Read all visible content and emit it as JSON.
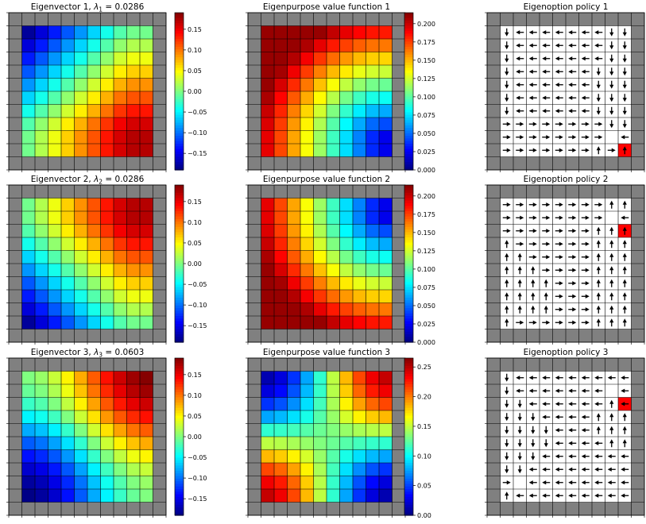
{
  "chart_data": [
    {
      "type": "heatmap",
      "kind": "eigenvector",
      "title_text": "Eigenvector 1,  ",
      "lambda_sym": "λ",
      "lambda_sub": "1",
      "lambda_value": " = 0.0286",
      "grid_size": 12,
      "pattern": "ev1",
      "vmin": -0.19,
      "vmax": 0.19,
      "colorbar_ticks": [
        "0.15",
        "0.10",
        "0.05",
        "0.00",
        "−0.05",
        "−0.10",
        "−0.15"
      ],
      "colorbar_values": [
        0.15,
        0.1,
        0.05,
        0.0,
        -0.05,
        -0.1,
        -0.15
      ]
    },
    {
      "type": "heatmap",
      "kind": "value",
      "title_text": "Eigenpurpose value function 1",
      "grid_size": 12,
      "pattern": "vf1",
      "vmin": 0.0,
      "vmax": 0.215,
      "colorbar_ticks": [
        "0.200",
        "0.175",
        "0.150",
        "0.125",
        "0.100",
        "0.075",
        "0.050",
        "0.025",
        "0.000"
      ],
      "colorbar_values": [
        0.2,
        0.175,
        0.15,
        0.125,
        0.1,
        0.075,
        0.05,
        0.025,
        0.0
      ]
    },
    {
      "type": "policy",
      "title_text": "Eigenoption policy 1",
      "grid_size": 12,
      "goal": [
        9,
        9
      ],
      "arrow_color": "#000000",
      "goal_color": "#ff0000",
      "arrows": [
        "DLLLLLLLDD",
        "DLLLLLLLDD",
        "DLLLLLLLDD",
        "DLLLLLLDDD",
        "DLLLLLLDDD",
        "DLLLLLLDDD",
        "DLLLLLLDDD",
        "RRRRRRRRDD",
        "RRRRRRRRGL",
        "RRRRRRRURU"
      ]
    },
    {
      "type": "heatmap",
      "kind": "eigenvector",
      "title_text": "Eigenvector 2,  ",
      "lambda_sym": "λ",
      "lambda_sub": "2",
      "lambda_value": " = 0.0286",
      "grid_size": 12,
      "pattern": "ev2",
      "vmin": -0.19,
      "vmax": 0.19,
      "colorbar_ticks": [
        "0.15",
        "0.10",
        "0.05",
        "0.00",
        "−0.05",
        "−0.10",
        "−0.15"
      ],
      "colorbar_values": [
        0.15,
        0.1,
        0.05,
        0.0,
        -0.05,
        -0.1,
        -0.15
      ]
    },
    {
      "type": "heatmap",
      "kind": "value",
      "title_text": "Eigenpurpose value function 2",
      "grid_size": 12,
      "pattern": "vf2",
      "vmin": 0.0,
      "vmax": 0.215,
      "colorbar_ticks": [
        "0.200",
        "0.175",
        "0.150",
        "0.125",
        "0.100",
        "0.075",
        "0.050",
        "0.025",
        "0.000"
      ],
      "colorbar_values": [
        0.2,
        0.175,
        0.15,
        0.125,
        0.1,
        0.075,
        0.05,
        0.025,
        0.0
      ]
    },
    {
      "type": "policy",
      "title_text": "Eigenoption policy 2",
      "grid_size": 12,
      "goal": [
        9,
        2
      ],
      "arrow_color": "#000000",
      "goal_color": "#ff0000",
      "arrows": [
        "RRRRRRRRUU",
        "RRRRRRRRGL",
        "RRRRRRRUUU",
        "URRRRRRUUU",
        "UURRRRRUUU",
        "UUURRRRUUU",
        "UUUURRRUUU",
        "UUUURRRUUU",
        "UUUURRRUUU",
        "URRRRRRUUU"
      ]
    },
    {
      "type": "heatmap",
      "kind": "eigenvector",
      "title_text": "Eigenvector 3,  ",
      "lambda_sym": "λ",
      "lambda_sub": "3",
      "lambda_value": " = 0.0603",
      "grid_size": 12,
      "pattern": "ev3",
      "vmin": -0.19,
      "vmax": 0.19,
      "colorbar_ticks": [
        "0.15",
        "0.10",
        "0.05",
        "0.00",
        "−0.05",
        "−0.10",
        "−0.15"
      ],
      "colorbar_values": [
        0.15,
        0.1,
        0.05,
        0.0,
        -0.05,
        -0.1,
        -0.15
      ]
    },
    {
      "type": "heatmap",
      "kind": "value",
      "title_text": "Eigenpurpose value function 3",
      "grid_size": 12,
      "pattern": "vf3",
      "vmin": 0.0,
      "vmax": 0.265,
      "colorbar_ticks": [
        "0.25",
        "0.20",
        "0.15",
        "0.10",
        "0.05",
        "0.00"
      ],
      "colorbar_values": [
        0.25,
        0.2,
        0.15,
        0.1,
        0.05,
        0.0
      ]
    },
    {
      "type": "policy",
      "title_text": "Eigenoption policy 3",
      "grid_size": 12,
      "goal": [
        9,
        2
      ],
      "arrow_color": "#000000",
      "goal_color": "#ff0000",
      "arrows": [
        "DLLLLLLLLL",
        "DLLLLLLLGL",
        "DDLLLLLLUL",
        "DDDLLLLUUU",
        "DDDDLLLUUU",
        "DDDDLLLLUU",
        "DDDLLLLLLL",
        "DDLLLLLLLL",
        "RGLLLLLLLL",
        "ULLLLLLLLL"
      ]
    }
  ]
}
